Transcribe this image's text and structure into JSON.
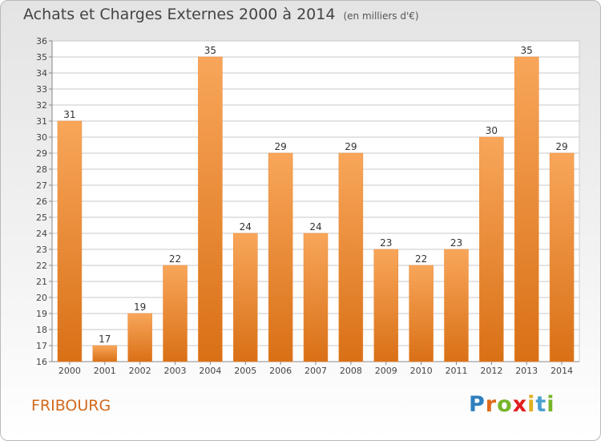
{
  "header": {
    "title": "Achats et Charges Externes 2000 à 2014",
    "subtitle": "(en milliers d'€)"
  },
  "footer": {
    "place": "FRIBOURG",
    "brand_letters": [
      "P",
      "r",
      "o",
      "x",
      "i",
      "t",
      "i"
    ]
  },
  "colors": {
    "brand": [
      "#2f7fbf",
      "#e06a1b",
      "#77b52a",
      "#e11d1d",
      "#e0b020",
      "#4aa0d0",
      "#77b52a"
    ],
    "bar_top": "#f8a65a",
    "bar_bottom": "#d97016",
    "grid": "#c8c8c8"
  },
  "chart_data": {
    "type": "bar",
    "title": "Achats et Charges Externes 2000 à 2014",
    "subtitle": "(en milliers d'€)",
    "categories": [
      "2000",
      "2001",
      "2002",
      "2003",
      "2004",
      "2005",
      "2006",
      "2007",
      "2008",
      "2009",
      "2010",
      "2011",
      "2012",
      "2013",
      "2014"
    ],
    "values": [
      31,
      17,
      19,
      22,
      35,
      24,
      29,
      24,
      29,
      23,
      22,
      23,
      30,
      35,
      29
    ],
    "ylim": [
      16,
      36
    ],
    "yticks": [
      16,
      17,
      18,
      19,
      20,
      21,
      22,
      23,
      24,
      25,
      26,
      27,
      28,
      29,
      30,
      31,
      32,
      33,
      34,
      35,
      36
    ],
    "grid": true,
    "xlabel": "",
    "ylabel": ""
  }
}
